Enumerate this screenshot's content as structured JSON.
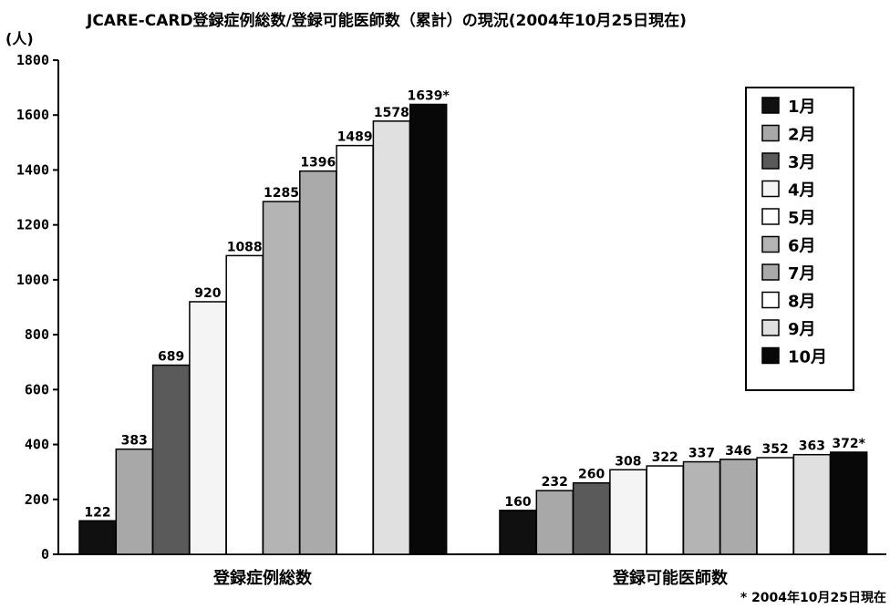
{
  "chart_data": {
    "type": "bar",
    "title": "JCARE-CARD登録症例総数/登録可能医師数（累計）の現況(2004年10月25日現在)",
    "ylabel": "(人)",
    "ylim": [
      0,
      1800
    ],
    "yticks": [
      0,
      200,
      400,
      600,
      800,
      1000,
      1200,
      1400,
      1600,
      1800
    ],
    "grid": false,
    "legend_position": "top-right",
    "categories": [
      "登録症例総数",
      "登録可能医師数"
    ],
    "series": [
      {
        "name": "1月",
        "values": [
          122,
          160
        ],
        "labels": [
          "122",
          "160"
        ],
        "color": "#101010"
      },
      {
        "name": "2月",
        "values": [
          383,
          232
        ],
        "labels": [
          "383",
          "232"
        ],
        "color": "#a8a8a8"
      },
      {
        "name": "3月",
        "values": [
          689,
          260
        ],
        "labels": [
          "689",
          "260"
        ],
        "color": "#5a5a5a"
      },
      {
        "name": "4月",
        "values": [
          920,
          308
        ],
        "labels": [
          "920",
          "308"
        ],
        "color": "#f4f4f4"
      },
      {
        "name": "5月",
        "values": [
          1088,
          322
        ],
        "labels": [
          "1088",
          "322"
        ],
        "color": "#ffffff"
      },
      {
        "name": "6月",
        "values": [
          1285,
          337
        ],
        "labels": [
          "1285",
          "337"
        ],
        "color": "#b4b4b4"
      },
      {
        "name": "7月",
        "values": [
          1396,
          346
        ],
        "labels": [
          "1396",
          "346"
        ],
        "color": "#aaaaaa"
      },
      {
        "name": "8月",
        "values": [
          1489,
          352
        ],
        "labels": [
          "1489",
          "352"
        ],
        "color": "#ffffff"
      },
      {
        "name": "9月",
        "values": [
          1578,
          363
        ],
        "labels": [
          "1578",
          "363"
        ],
        "color": "#e0e0e0"
      },
      {
        "name": "10月",
        "values": [
          1639,
          372
        ],
        "labels": [
          "1639*",
          "372*"
        ],
        "color": "#080808"
      }
    ],
    "footnote": "* 2004年10月25日現在"
  }
}
